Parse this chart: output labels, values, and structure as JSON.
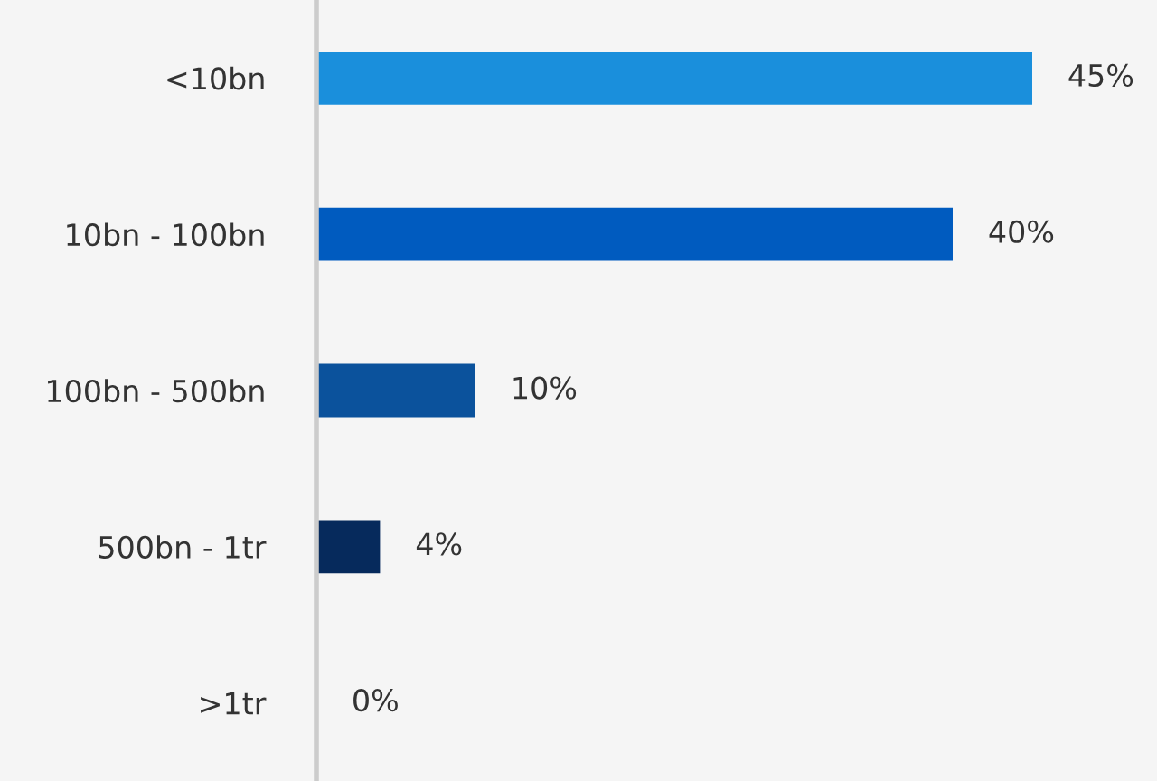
{
  "chart_data": {
    "type": "bar",
    "orientation": "horizontal",
    "categories": [
      "<10bn",
      "10bn - 100bn",
      "100bn - 500bn",
      "500bn - 1tr",
      ">1tr"
    ],
    "values": [
      45,
      40,
      10,
      4,
      0
    ],
    "colors": [
      "#1a8fdc",
      "#005bbf",
      "#0b529c",
      "#062a5c",
      "#062a5c"
    ],
    "value_labels": [
      "45%",
      "40%",
      "10%",
      "4%",
      "0%"
    ],
    "grid": false,
    "legend": false
  }
}
